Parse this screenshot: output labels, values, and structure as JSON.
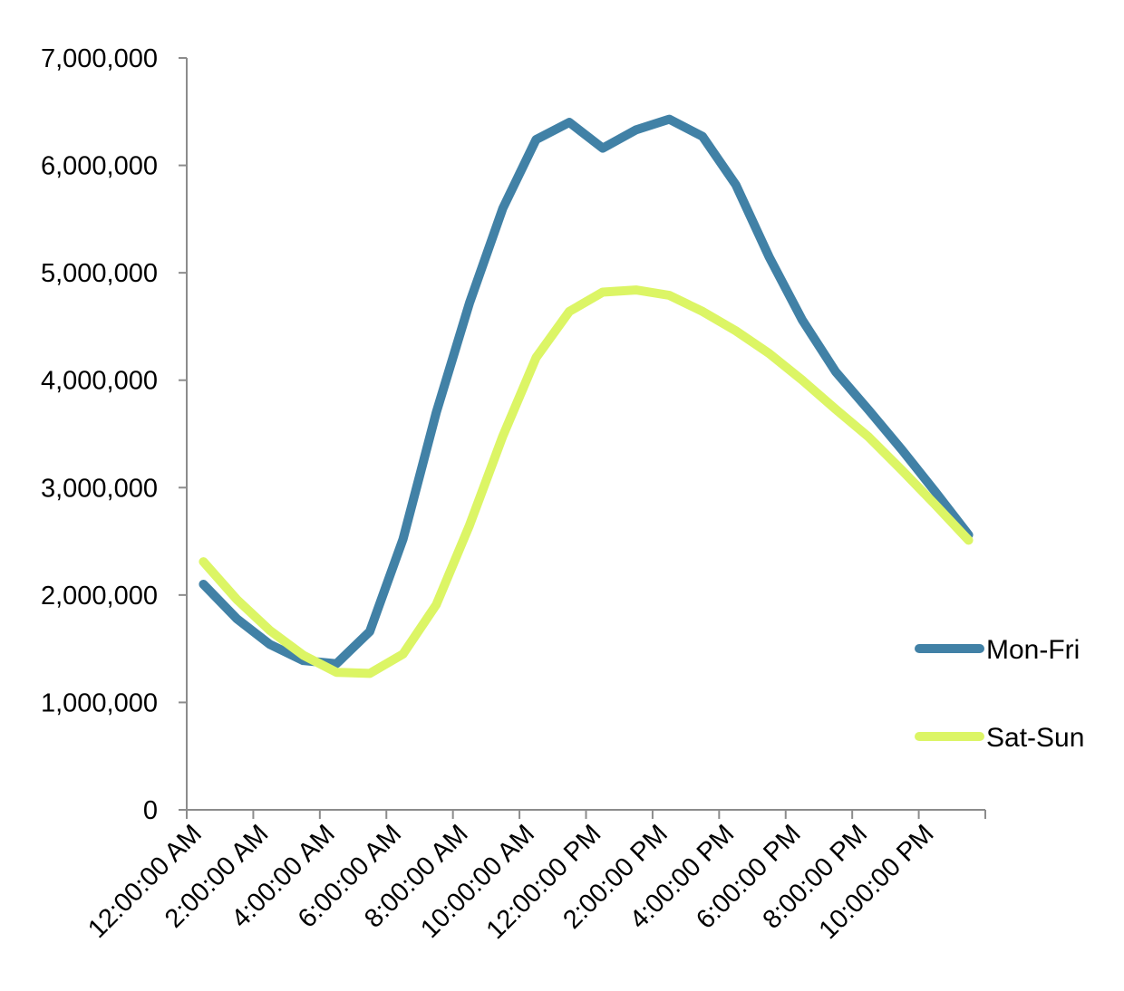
{
  "chart_data": {
    "type": "line",
    "title": "",
    "xlabel": "",
    "ylabel": "",
    "ylim": [
      0,
      7000000
    ],
    "yticks": [
      0,
      1000000,
      2000000,
      3000000,
      4000000,
      5000000,
      6000000,
      7000000
    ],
    "ytick_labels": [
      "0",
      "1,000,000",
      "2,000,000",
      "3,000,000",
      "4,000,000",
      "5,000,000",
      "6,000,000",
      "7,000,000"
    ],
    "categories": [
      "12:00:00 AM",
      "1:00:00 AM",
      "2:00:00 AM",
      "3:00:00 AM",
      "4:00:00 AM",
      "5:00:00 AM",
      "6:00:00 AM",
      "7:00:00 AM",
      "8:00:00 AM",
      "9:00:00 AM",
      "10:00:00 AM",
      "11:00:00 AM",
      "12:00:00 PM",
      "1:00:00 PM",
      "2:00:00 PM",
      "3:00:00 PM",
      "4:00:00 PM",
      "5:00:00 PM",
      "6:00:00 PM",
      "7:00:00 PM",
      "8:00:00 PM",
      "9:00:00 PM",
      "10:00:00 PM",
      "11:00:00 PM"
    ],
    "xtick_labels_shown": [
      "12:00:00 AM",
      "2:00:00 AM",
      "4:00:00 AM",
      "6:00:00 AM",
      "8:00:00 AM",
      "10:00:00 AM",
      "12:00:00 PM",
      "2:00:00 PM",
      "4:00:00 PM",
      "6:00:00 PM",
      "8:00:00 PM",
      "10:00:00 PM"
    ],
    "series": [
      {
        "name": "Mon-Fri",
        "color": "#4181a6",
        "values": [
          2100000,
          1780000,
          1540000,
          1390000,
          1360000,
          1660000,
          2520000,
          3700000,
          4720000,
          5600000,
          6240000,
          6400000,
          6160000,
          6330000,
          6430000,
          6270000,
          5820000,
          5150000,
          4560000,
          4080000,
          3720000,
          3350000,
          2960000,
          2560000
        ]
      },
      {
        "name": "Sat-Sun",
        "color": "#dcf565",
        "values": [
          2310000,
          1960000,
          1670000,
          1440000,
          1280000,
          1270000,
          1450000,
          1910000,
          2650000,
          3480000,
          4210000,
          4640000,
          4820000,
          4840000,
          4790000,
          4640000,
          4460000,
          4250000,
          4000000,
          3730000,
          3470000,
          3160000,
          2840000,
          2510000
        ]
      }
    ],
    "legend_position": "right",
    "grid": false
  }
}
